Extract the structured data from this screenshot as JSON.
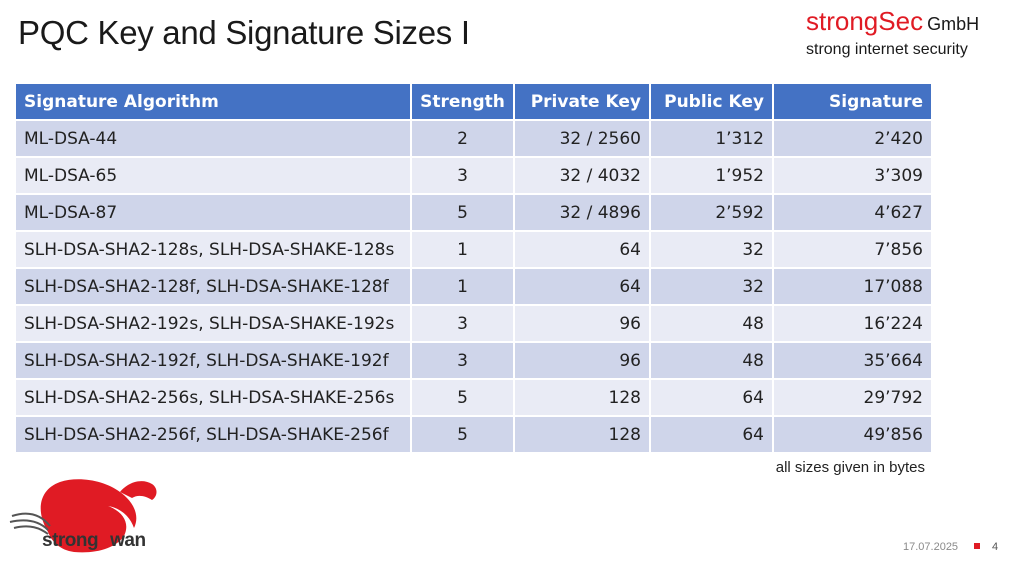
{
  "title": "PQC Key and Signature Sizes I",
  "brand": {
    "name": "strongSec",
    "suffix": "GmbH",
    "tagline": "strong internet security"
  },
  "table": {
    "headers": [
      "Signature Algorithm",
      "Strength",
      "Private Key",
      "Public Key",
      "Signature"
    ],
    "rows": [
      [
        "ML-DSA-44",
        "2",
        "32 / 2560",
        "1’312",
        "2’420"
      ],
      [
        "ML-DSA-65",
        "3",
        "32 / 4032",
        "1’952",
        "3’309"
      ],
      [
        "ML-DSA-87",
        "5",
        "32 / 4896",
        "2’592",
        "4’627"
      ],
      [
        "SLH-DSA-SHA2-128s, SLH-DSA-SHAKE-128s",
        "1",
        "64",
        "32",
        "7’856"
      ],
      [
        "SLH-DSA-SHA2-128f, SLH-DSA-SHAKE-128f",
        "1",
        "64",
        "32",
        "17’088"
      ],
      [
        "SLH-DSA-SHA2-192s, SLH-DSA-SHAKE-192s",
        "3",
        "96",
        "48",
        "16’224"
      ],
      [
        "SLH-DSA-SHA2-192f, SLH-DSA-SHAKE-192f",
        "3",
        "96",
        "48",
        "35’664"
      ],
      [
        "SLH-DSA-SHA2-256s, SLH-DSA-SHAKE-256s",
        "5",
        "128",
        "64",
        "29’792"
      ],
      [
        "SLH-DSA-SHA2-256f, SLH-DSA-SHAKE-256f",
        "5",
        "128",
        "64",
        "49’856"
      ]
    ]
  },
  "note": "all sizes given in bytes",
  "logo": {
    "text_left": "strong",
    "text_right": "wan",
    "colors": {
      "swan": "#e01b24",
      "text": "#333333"
    }
  },
  "footer": {
    "date": "17.07.2025",
    "page": "4"
  },
  "colors": {
    "accent": "#e01b24",
    "header_bg": "#4472c4",
    "row_odd": "#cfd5ea",
    "row_even": "#e9ebf5"
  }
}
